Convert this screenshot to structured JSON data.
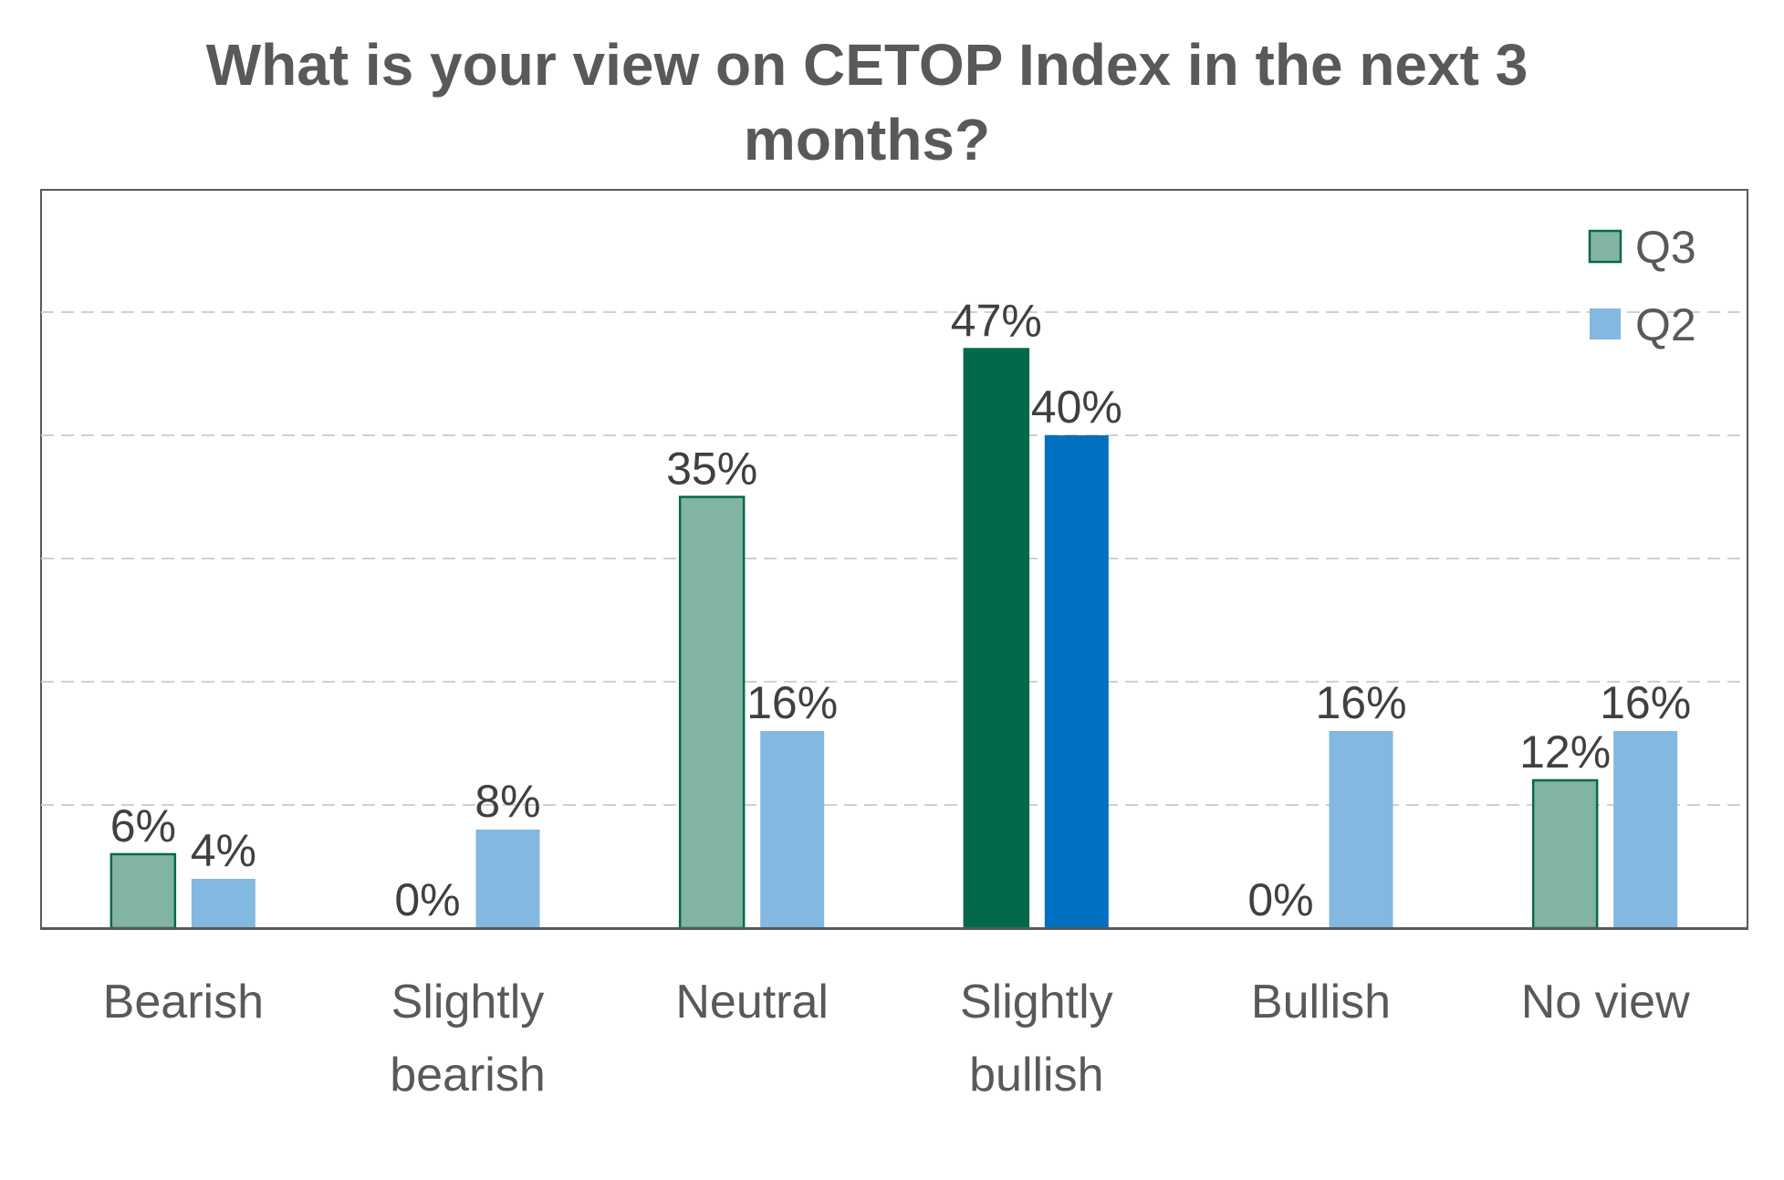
{
  "chart_data": {
    "type": "bar",
    "title": "What is your view on CETOP Index in the next 3 months?",
    "categories": [
      [
        "Bearish"
      ],
      [
        "Slightly",
        "bearish"
      ],
      [
        "Neutral"
      ],
      [
        "Slightly",
        "bullish"
      ],
      [
        "Bullish"
      ],
      [
        "No view"
      ]
    ],
    "series": [
      {
        "name": "Q3",
        "values": [
          6,
          0,
          35,
          47,
          0,
          12
        ],
        "value_labels": [
          "6%",
          "0%",
          "35%",
          "47%",
          "0%",
          "12%"
        ]
      },
      {
        "name": "Q2",
        "values": [
          4,
          8,
          16,
          40,
          16,
          16
        ],
        "value_labels": [
          "4%",
          "8%",
          "16%",
          "40%",
          "16%",
          "16%"
        ]
      }
    ],
    "highlight_category": "Slightly bullish",
    "ylim": [
      0,
      60
    ],
    "gridlines": "dashed, every 10%",
    "y_axis_labels": "hidden",
    "legend_position": "top-right",
    "colors": {
      "q3": "#82b4a3",
      "q3_stroke": "#04694a",
      "q2": "#83b8e0",
      "q3_highlight": "#026a4a",
      "q2_highlight": "#0070c0",
      "grid": "#d0d0d0",
      "frame": "#595959"
    }
  }
}
